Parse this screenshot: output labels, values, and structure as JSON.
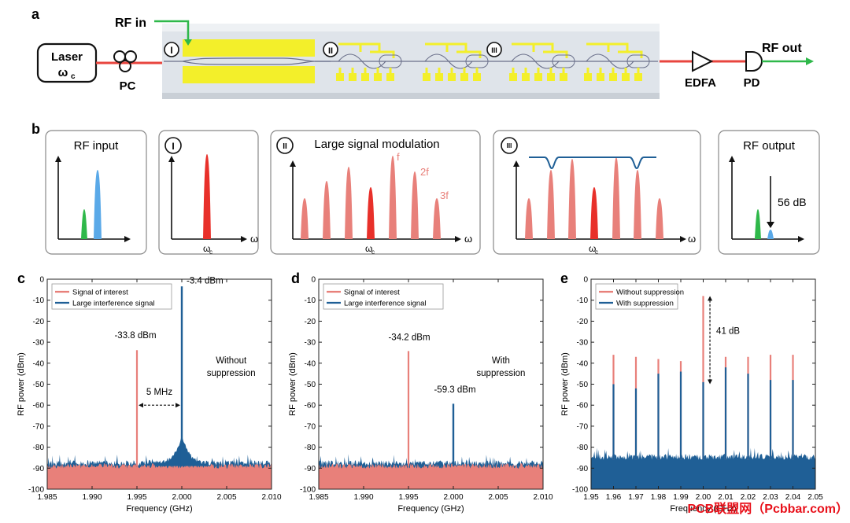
{
  "colors": {
    "signal": "#e8807a",
    "interference": "#1f5f96",
    "green": "#2fb84a",
    "blue": "#5aa9e8",
    "red": "#e8302a",
    "electrode": "#f3ef2a",
    "chip": "#dfe4ea",
    "fiber": "#e8453e"
  },
  "panel_a": {
    "label": "a",
    "laser_line1": "Laser",
    "laser_line2": "ω",
    "laser_sub": "c",
    "pc": "PC",
    "rf_in": "RF in",
    "rf_out": "RF out",
    "edfa": "EDFA",
    "pd": "PD",
    "stage1": "I",
    "stage2": "II",
    "stage3": "III"
  },
  "panel_b": {
    "label": "b",
    "box1_title": "RF input",
    "box2_marker": "I",
    "box3_marker": "II",
    "box3_title": "Large signal modulation",
    "box4_marker": "III",
    "box5_title": "RF output",
    "omega": "ω",
    "omega_c": "ω",
    "omega_c_sub": "c",
    "f1": "f",
    "f2": "2f",
    "f3": "3f",
    "db56": "56 dB"
  },
  "chart_data": [
    {
      "panel": "c",
      "type": "line",
      "xlabel": "Frequency (GHz)",
      "ylabel": "RF power (dBm)",
      "xlim": [
        1.985,
        2.01
      ],
      "ylim": [
        -100,
        0
      ],
      "xticks": [
        "1.985",
        "1.990",
        "1.995",
        "2.000",
        "2.005",
        "2.010"
      ],
      "yticks": [
        "0",
        "-10",
        "-20",
        "-30",
        "-40",
        "-50",
        "-60",
        "-70",
        "-80",
        "-90",
        "-100"
      ],
      "legend": [
        "Signal of interest",
        "Large interference signal"
      ],
      "noise_floor": -89,
      "series": [
        {
          "name": "Signal of interest",
          "peaks": [
            {
              "x": 1.995,
              "y": -33.8
            }
          ]
        },
        {
          "name": "Large interference signal",
          "peaks": [
            {
              "x": 2.0,
              "y": -3.4
            }
          ],
          "skirt": true
        }
      ],
      "annotations": {
        "peak1": "-33.8 dBm",
        "peak2": "-3.4 dBm",
        "spacing": "5 MHz",
        "note_line1": "Without",
        "note_line2": "suppression"
      }
    },
    {
      "panel": "d",
      "type": "line",
      "xlabel": "Frequency (GHz)",
      "ylabel": "RF power (dBm)",
      "xlim": [
        1.985,
        2.01
      ],
      "ylim": [
        -100,
        0
      ],
      "xticks": [
        "1.985",
        "1.990",
        "1.995",
        "2.000",
        "2.005",
        "2.010"
      ],
      "yticks": [
        "0",
        "-10",
        "-20",
        "-30",
        "-40",
        "-50",
        "-60",
        "-70",
        "-80",
        "-90",
        "-100"
      ],
      "legend": [
        "Signal of interest",
        "Large interference signal"
      ],
      "noise_floor": -89,
      "series": [
        {
          "name": "Signal of interest",
          "peaks": [
            {
              "x": 1.995,
              "y": -34.2
            }
          ]
        },
        {
          "name": "Large interference signal",
          "peaks": [
            {
              "x": 2.0,
              "y": -59.3
            }
          ]
        }
      ],
      "annotations": {
        "peak1": "-34.2 dBm",
        "peak2": "-59.3 dBm",
        "note_line1": "With",
        "note_line2": "suppression"
      }
    },
    {
      "panel": "e",
      "type": "line",
      "xlabel": "Frequency (GHz)",
      "ylabel": "RF power (dBm)",
      "xlim": [
        1.95,
        2.05
      ],
      "ylim": [
        -100,
        0
      ],
      "xticks": [
        "1.95",
        "1.96",
        "1.97",
        "1.98",
        "1.99",
        "2.00",
        "2.01",
        "2.02",
        "2.03",
        "2.04",
        "2.05"
      ],
      "yticks": [
        "0",
        "-10",
        "-20",
        "-30",
        "-40",
        "-50",
        "-60",
        "-70",
        "-80",
        "-90",
        "-100"
      ],
      "legend": [
        "Without suppression",
        "With suppression"
      ],
      "noise_floor": -86,
      "series": [
        {
          "name": "Without suppression",
          "x": [
            1.96,
            1.97,
            1.98,
            1.99,
            2.0,
            2.01,
            2.02,
            2.03,
            2.04
          ],
          "y": [
            -36,
            -37,
            -38,
            -39,
            -8,
            -37,
            -37,
            -36,
            -36
          ]
        },
        {
          "name": "With suppression",
          "x": [
            1.96,
            1.97,
            1.98,
            1.99,
            2.0,
            2.01,
            2.02,
            2.03,
            2.04
          ],
          "y": [
            -50,
            -52,
            -45,
            -44,
            -49,
            -42,
            -45,
            -48,
            -48
          ]
        }
      ],
      "annotations": {
        "diff": "41 dB"
      }
    }
  ],
  "watermark": "PCB联盟网（Pcbbar.com）"
}
